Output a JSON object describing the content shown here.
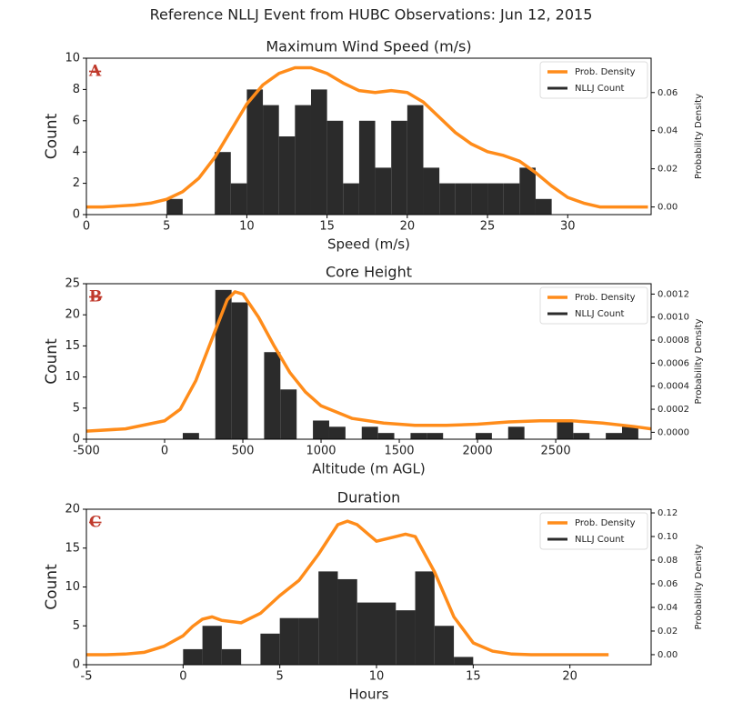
{
  "title": "Reference NLLJ Event from HUBC Observations: Jun 12, 2015",
  "chart_data": [
    {
      "type": "histogram",
      "title": "Maximum Wind Speed (m/s)",
      "annotation": "A",
      "xlabel": "Speed (m/s)",
      "ylabel": "Count",
      "y2label": "Probability Density",
      "xlim": [
        0,
        35.2
      ],
      "xticks": [
        0,
        5,
        10,
        15,
        20,
        25,
        30
      ],
      "ylim": [
        0,
        10
      ],
      "yticks": [
        0,
        2,
        4,
        6,
        8,
        10
      ],
      "y2lim": [
        -0.004,
        0.078
      ],
      "y2ticks": [
        {
          "value": 0,
          "label": "0.00"
        },
        0.02,
        0.04,
        0.06
      ],
      "legend": "upper right",
      "bins": [
        5,
        6,
        7,
        8,
        9,
        10,
        11,
        12,
        13,
        14,
        15,
        16,
        17,
        18,
        19,
        20,
        21,
        22,
        23,
        24,
        25,
        26,
        27,
        28,
        29
      ],
      "series": [
        {
          "name": "Prob. Density",
          "type": "line",
          "axis": "y2",
          "color": "#ff8c1a",
          "x": [
            0,
            1,
            2,
            3,
            4,
            5,
            6,
            7,
            8,
            9,
            10,
            11,
            12,
            13,
            14,
            15,
            16,
            17,
            18,
            19,
            20,
            21,
            22,
            23,
            24,
            25,
            26,
            27,
            28,
            29,
            30,
            31,
            32,
            33,
            34,
            35
          ],
          "values": [
            0,
            0,
            0.0005,
            0.001,
            0.002,
            0.004,
            0.008,
            0.015,
            0.026,
            0.04,
            0.054,
            0.064,
            0.07,
            0.073,
            0.073,
            0.07,
            0.065,
            0.061,
            0.06,
            0.061,
            0.06,
            0.055,
            0.047,
            0.039,
            0.033,
            0.029,
            0.027,
            0.024,
            0.018,
            0.011,
            0.005,
            0.002,
            0,
            0,
            0,
            0
          ]
        },
        {
          "name": "NLLJ Count",
          "type": "histogram",
          "color": "#2b2b2b",
          "values": [
            1,
            0,
            0,
            4,
            2,
            8,
            7,
            5,
            7,
            8,
            6,
            2,
            6,
            3,
            6,
            7,
            3,
            2,
            2,
            2,
            2,
            2,
            3,
            1
          ]
        }
      ]
    },
    {
      "type": "histogram",
      "title": "Core Height",
      "annotation": "B",
      "xlabel": "Altitude (m AGL)",
      "ylabel": "Count",
      "y2label": "Probability Density",
      "xlim": [
        -500,
        3110
      ],
      "xticks": [
        -500,
        0,
        500,
        1000,
        1500,
        2000,
        2500
      ],
      "ylim": [
        0,
        25
      ],
      "yticks": [
        0,
        5,
        10,
        15,
        20,
        25
      ],
      "y2lim": [
        -6e-05,
        0.00129
      ],
      "y2ticks": [
        {
          "value": 0,
          "label": "0.0000"
        },
        0.0002,
        0.0004,
        0.0006,
        0.0008,
        {
          "value": 0.001,
          "label": "0.0010"
        },
        0.0012
      ],
      "legend": "upper right",
      "bins": [
        116,
        220,
        324,
        428,
        532,
        636,
        740,
        844,
        948,
        1052,
        1156,
        1260,
        1364,
        1468,
        1572,
        1676,
        1780,
        1884,
        1988,
        2092,
        2196,
        2300,
        2404,
        2508,
        2612,
        2716,
        2820,
        2924,
        3028
      ],
      "series": [
        {
          "name": "Prob. Density",
          "type": "line",
          "axis": "y2",
          "color": "#ff8c1a",
          "x": [
            -500,
            -250,
            0,
            100,
            200,
            300,
            400,
            450,
            500,
            600,
            700,
            800,
            900,
            1000,
            1200,
            1400,
            1600,
            1800,
            2000,
            2200,
            2400,
            2600,
            2800,
            3000,
            3110
          ],
          "values": [
            1e-05,
            3e-05,
            0.0001,
            0.0002,
            0.00045,
            0.0008,
            0.00115,
            0.00122,
            0.0012,
            0.001,
            0.00075,
            0.00052,
            0.00035,
            0.00023,
            0.00012,
            8e-05,
            6e-05,
            6e-05,
            7e-05,
            9e-05,
            0.0001,
            0.0001,
            8e-05,
            5e-05,
            3e-05
          ]
        },
        {
          "name": "NLLJ Count",
          "type": "histogram",
          "color": "#2b2b2b",
          "values": [
            1,
            0,
            24,
            22,
            0,
            14,
            8,
            0,
            3,
            2,
            0,
            2,
            1,
            0,
            1,
            1,
            0,
            0,
            1,
            0,
            2,
            0,
            0,
            3,
            1,
            0,
            1,
            2
          ]
        }
      ]
    },
    {
      "type": "histogram",
      "title": "Duration",
      "annotation": "C",
      "xlabel": "Hours",
      "ylabel": "Count",
      "y2label": "Probability Density",
      "xlim": [
        -5,
        24.2
      ],
      "xticks": [
        -5,
        0,
        5,
        10,
        15,
        20
      ],
      "ylim": [
        0,
        20
      ],
      "yticks": [
        0,
        5,
        10,
        15,
        20
      ],
      "y2lim": [
        -0.0085,
        0.1231
      ],
      "y2ticks": [
        {
          "value": 0,
          "label": "0.00"
        },
        0.02,
        0.04,
        0.06,
        0.08,
        {
          "value": 0.1,
          "label": "0.10"
        },
        0.12
      ],
      "legend": "upper right",
      "bins": [
        0,
        1,
        2,
        3,
        4,
        5,
        6,
        7,
        8,
        9,
        10,
        11,
        12,
        13,
        14,
        15
      ],
      "series": [
        {
          "name": "Prob. Density",
          "type": "line",
          "axis": "y2",
          "color": "#ff8c1a",
          "x": [
            -5,
            -4,
            -3,
            -2,
            -1,
            0,
            0.5,
            1,
            1.5,
            2,
            3,
            4,
            5,
            6,
            7,
            8,
            8.5,
            9,
            10,
            11,
            11.5,
            12,
            13,
            14,
            15,
            16,
            17,
            18,
            22
          ],
          "values": [
            0,
            0,
            0.0005,
            0.002,
            0.007,
            0.016,
            0.024,
            0.03,
            0.032,
            0.029,
            0.027,
            0.035,
            0.05,
            0.063,
            0.085,
            0.11,
            0.113,
            0.11,
            0.096,
            0.1,
            0.102,
            0.1,
            0.07,
            0.032,
            0.01,
            0.003,
            0.0005,
            0,
            0
          ]
        },
        {
          "name": "NLLJ Count",
          "type": "histogram",
          "color": "#2b2b2b",
          "values": [
            2,
            5,
            2,
            0,
            4,
            6,
            6,
            12,
            11,
            8,
            8,
            7,
            12,
            5,
            1
          ]
        }
      ]
    }
  ]
}
